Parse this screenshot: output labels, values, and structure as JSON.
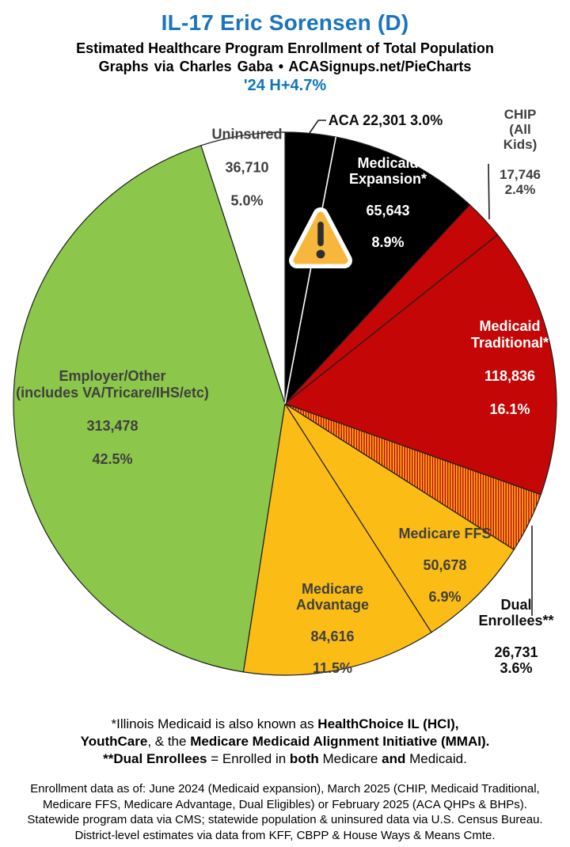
{
  "header": {
    "title": "IL-17 Eric Sorensen (D)",
    "subtitle": "Estimated Healthcare Program Enrollment of Total Population",
    "credit": "Graphs via Charles Gaba • ACASignups.net/PieCharts",
    "annotation": "'24 H+4.7%"
  },
  "colors": {
    "title_blue": "#1B75BC",
    "annotation_blue": "#0E76BD",
    "red": "#C40606",
    "gold": "#FBBC16",
    "green": "#8CC64A",
    "black": "#000000",
    "white": "#FFFFFF",
    "dark_label": "#3F3F3F",
    "warning_amber": "#F6B73C"
  },
  "chart_data": {
    "type": "pie",
    "title": "IL-17 Eric Sorensen (D) — Estimated Healthcare Program Enrollment of Total Population",
    "start_at_12_oclock_clockwise": true,
    "hatch_colors": [
      "#C40606",
      "#FBBC16"
    ],
    "warning_icon": "warning-triangle-icon",
    "slices": [
      {
        "name": "ACA",
        "enrollment": 22301,
        "pct": 3.0,
        "fill": "#000000",
        "label_display": "ACA 22,301 3.0%"
      },
      {
        "name": "Medicaid Expansion*",
        "enrollment": 65643,
        "pct": 8.9,
        "fill": "#000000",
        "label": "Medicaid\nExpansion*",
        "enrollment_display": "65,643",
        "pct_display": "8.9%"
      },
      {
        "name": "CHIP (All Kids)",
        "enrollment": 17746,
        "pct": 2.4,
        "fill": "#C40606",
        "label": "CHIP (All Kids)",
        "value_pct_display": "17,746 2.4%"
      },
      {
        "name": "Medicaid Traditional*",
        "enrollment": 118836,
        "pct": 16.1,
        "fill": "#C40606",
        "label": "Medicaid\nTraditional*",
        "enrollment_display": "118,836",
        "pct_display": "16.1%"
      },
      {
        "name": "Dual Enrollees**",
        "enrollment": 26731,
        "pct": 3.6,
        "fill": "hatch",
        "label": "Dual Enrollees**",
        "value_pct_display": "26,731 3.6%"
      },
      {
        "name": "Medicare FFS",
        "enrollment": 50678,
        "pct": 6.9,
        "fill": "#FBBC16",
        "label": "Medicare FFS",
        "enrollment_display": "50,678",
        "pct_display": "6.9%"
      },
      {
        "name": "Medicare Advantage",
        "enrollment": 84616,
        "pct": 11.5,
        "fill": "#FBBC16",
        "label": "Medicare\nAdvantage",
        "enrollment_display": "84,616",
        "pct_display": "11.5%"
      },
      {
        "name": "Employer/Other",
        "enrollment": 313478,
        "pct": 42.5,
        "fill": "#8CC64A",
        "label": "Employer/Other\n(includes VA/Tricare/IHS/etc)",
        "enrollment_display": "313,478",
        "pct_display": "42.5%"
      },
      {
        "name": "Uninsured",
        "enrollment": 36710,
        "pct": 5.0,
        "fill": "#FFFFFF",
        "label": "Uninsured",
        "enrollment_display": "36,710",
        "pct_display": "5.0%"
      }
    ]
  },
  "footnotes": {
    "line1": [
      {
        "text": "*Illinois Medicaid is also known as ",
        "bold": false
      },
      {
        "text": "HealthChoice IL (HCI),",
        "bold": true
      }
    ],
    "line2": [
      {
        "text": "YouthCare",
        "bold": true
      },
      {
        "text": ", & the ",
        "bold": false
      },
      {
        "text": "Medicare Medicaid Alignment Initiative (MMAI).",
        "bold": true
      }
    ],
    "line3": [
      {
        "text": "**Dual Enrollees",
        "bold": true
      },
      {
        "text": " = Enrolled in ",
        "bold": false
      },
      {
        "text": "both",
        "bold": true
      },
      {
        "text": " Medicare ",
        "bold": false
      },
      {
        "text": "and",
        "bold": true
      },
      {
        "text": " Medicaid.",
        "bold": false
      }
    ]
  },
  "source": {
    "line1": "Enrollment data as of: June 2024 (Medicaid expansion), March 2025 (CHIP, Medicaid Traditional,",
    "line2": "Medicare FFS, Medicare Advantage, Dual Eligibles) or February 2025 (ACA QHPs & BHPs).",
    "line3": "Statewide program data via CMS; statewide population & uninsured data via U.S. Census Bureau.",
    "line4": "District-level estimates via data from KFF, CBPP & House Ways & Means Cmte."
  }
}
